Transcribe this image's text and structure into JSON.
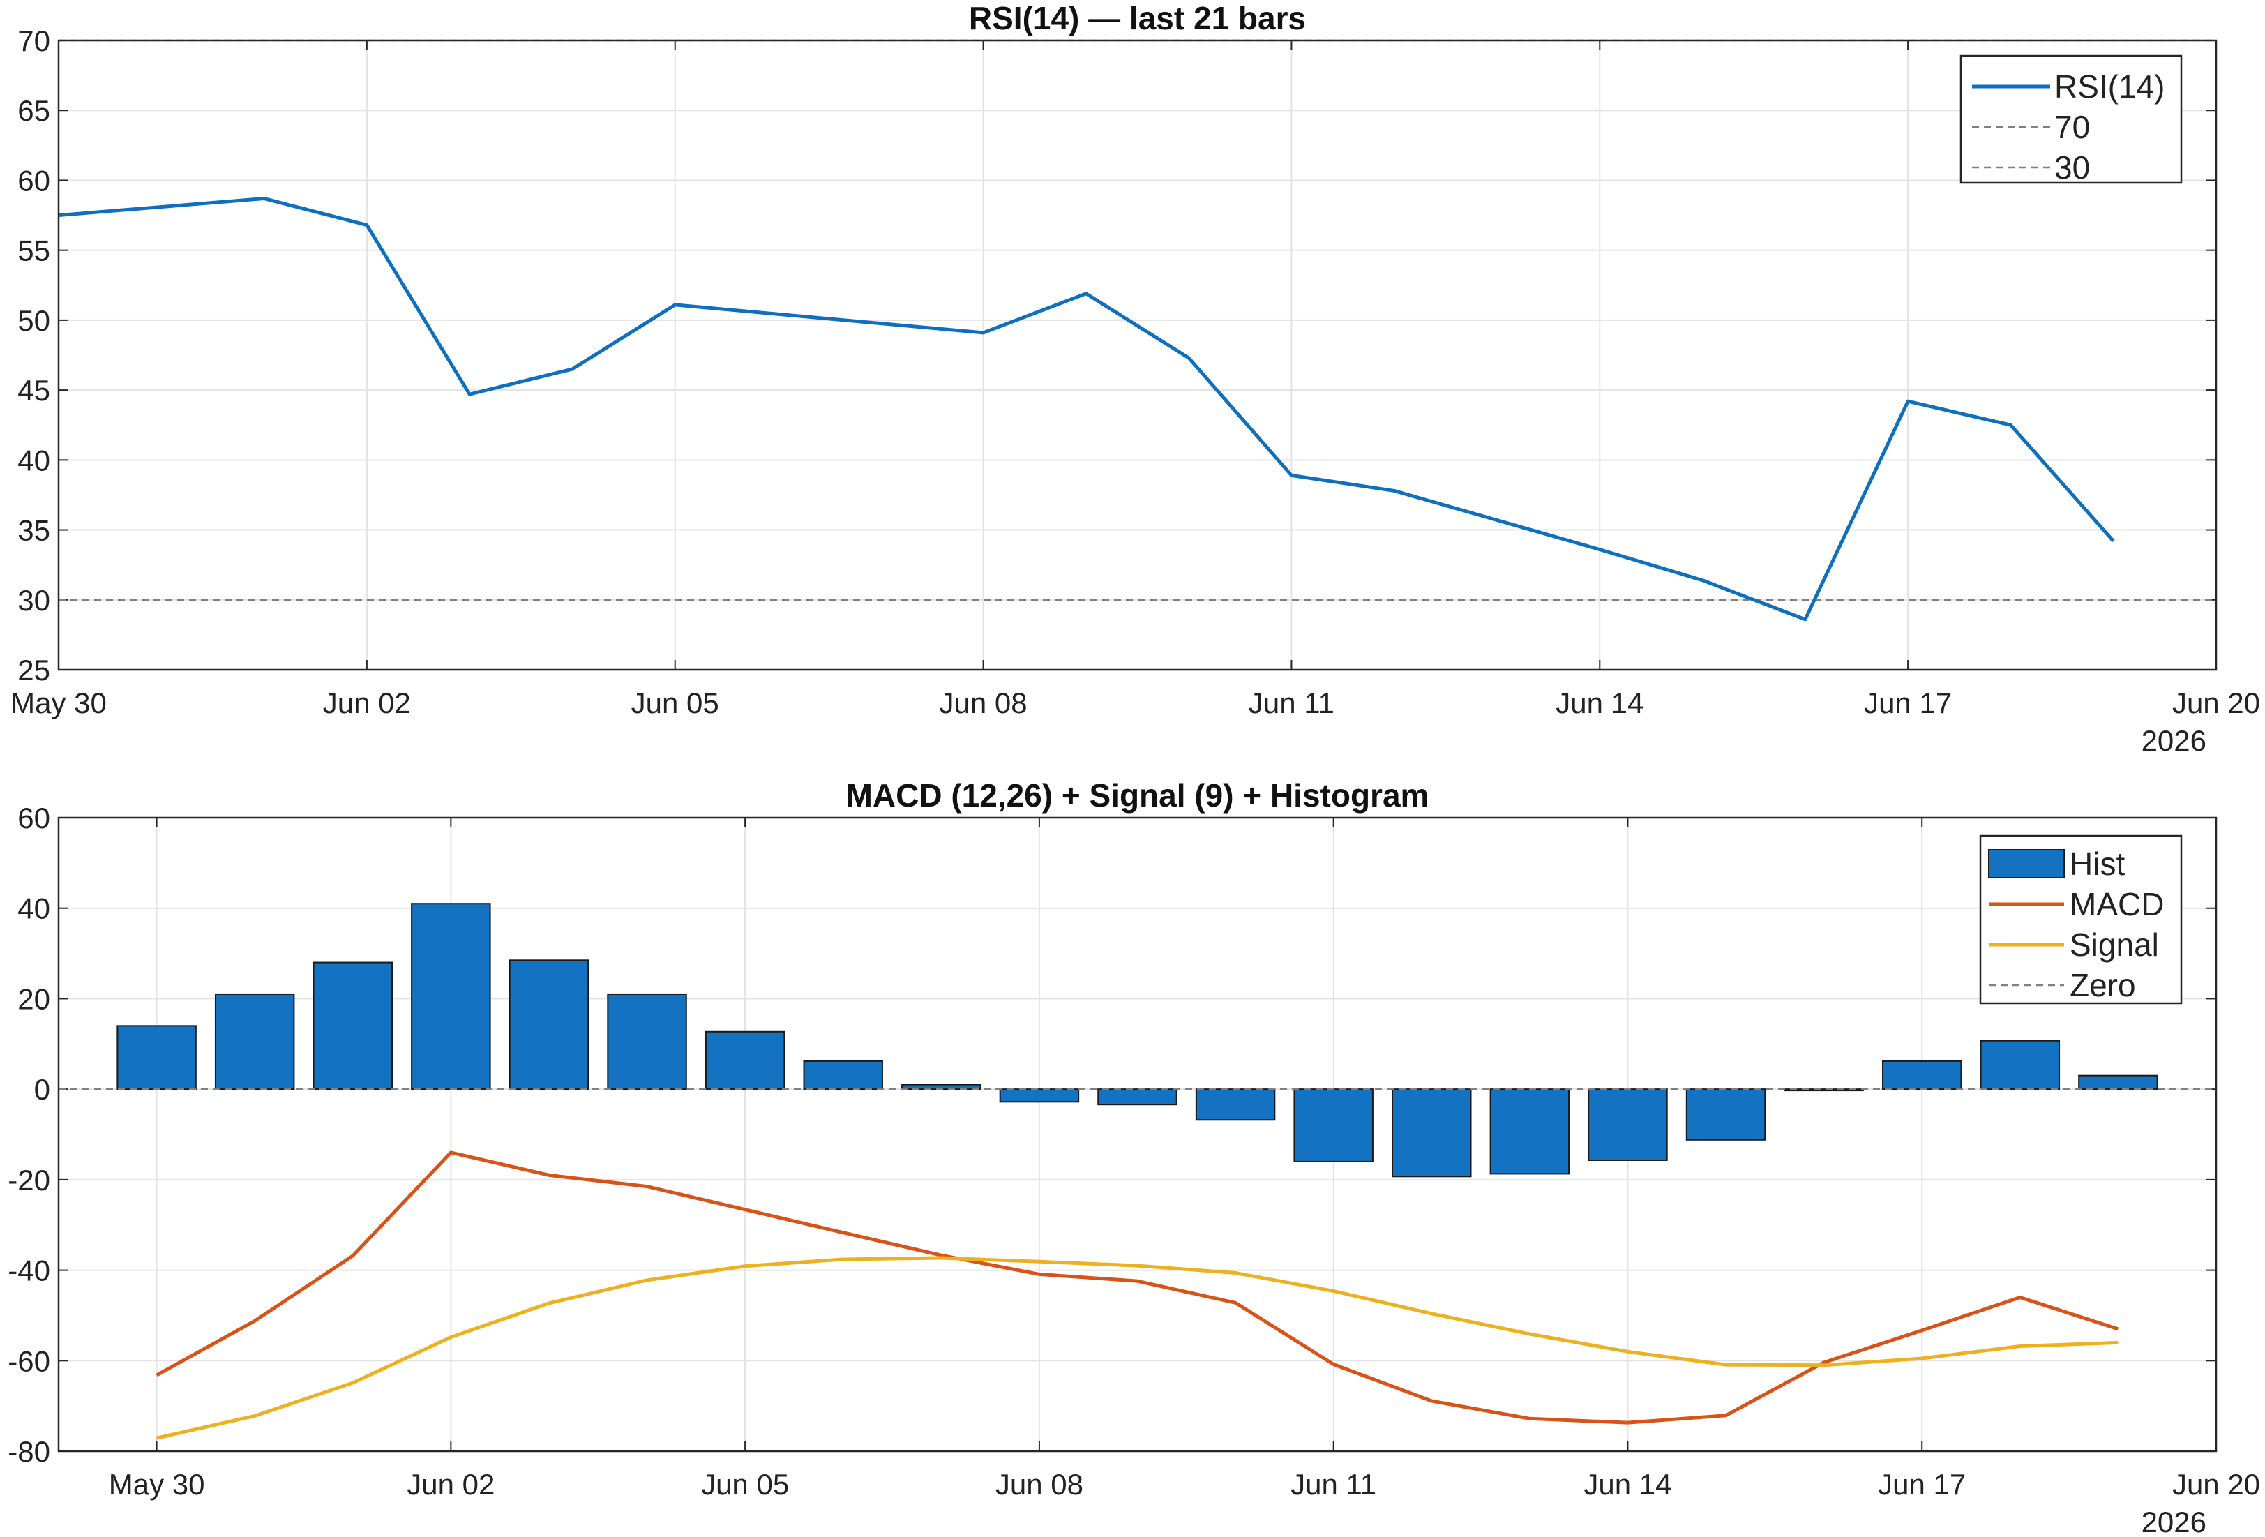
{
  "colors": {
    "rsi": "#0f6fbf",
    "hist": "#1372c1",
    "macd": "#d95319",
    "signal": "#edb120",
    "reference": "#808080",
    "grid": "#e3e3e3",
    "axis": "#262626"
  },
  "chart_data": [
    {
      "type": "line",
      "title": "RSI(14) — last 21 bars",
      "xlabel": "",
      "ylabel": "",
      "xlim": [
        "2026-05-30",
        "2026-06-20"
      ],
      "ylim": [
        25,
        70
      ],
      "yticks": [
        25,
        30,
        35,
        40,
        45,
        50,
        55,
        60,
        65,
        70
      ],
      "x_ticks": [
        {
          "date": "2026-05-30",
          "label": "May 30"
        },
        {
          "date": "2026-06-02",
          "label": "Jun 02"
        },
        {
          "date": "2026-06-05",
          "label": "Jun 05"
        },
        {
          "date": "2026-06-08",
          "label": "Jun 08"
        },
        {
          "date": "2026-06-11",
          "label": "Jun 11"
        },
        {
          "date": "2026-06-14",
          "label": "Jun 14"
        },
        {
          "date": "2026-06-17",
          "label": "Jun 17"
        },
        {
          "date": "2026-06-20",
          "label": "Jun 20"
        }
      ],
      "year_label": "2026",
      "grid": true,
      "legend": {
        "location": "top-right",
        "entries": [
          "RSI(14)",
          "70",
          "30"
        ]
      },
      "x": [
        "2026-05-30",
        "2026-06-01",
        "2026-06-02",
        "2026-06-03",
        "2026-06-04",
        "2026-06-05",
        "2026-06-08",
        "2026-06-09",
        "2026-06-10",
        "2026-06-11",
        "2026-06-12",
        "2026-06-13",
        "2026-06-14",
        "2026-06-15",
        "2026-06-16",
        "2026-06-17",
        "2026-06-18",
        "2026-06-19"
      ],
      "series": [
        {
          "name": "RSI(14)",
          "values": [
            57.5,
            58.7,
            56.8,
            44.7,
            46.5,
            51.1,
            49.1,
            51.9,
            47.3,
            38.9,
            37.8,
            35.7,
            33.6,
            31.4,
            28.6,
            44.2,
            42.5,
            34.2
          ]
        }
      ],
      "reference_lines": [
        {
          "name": "70",
          "value": 70
        },
        {
          "name": "30",
          "value": 30
        }
      ]
    },
    {
      "type": "bar",
      "title": "MACD (12,26) + Signal (9) + Histogram",
      "xlabel": "",
      "ylabel": "",
      "xlim": [
        "2026-05-29",
        "2026-06-20"
      ],
      "ylim": [
        -80,
        60
      ],
      "yticks": [
        -80,
        -60,
        -40,
        -20,
        0,
        20,
        40,
        60
      ],
      "x_ticks": [
        {
          "date": "2026-05-30",
          "label": "May 30"
        },
        {
          "date": "2026-06-02",
          "label": "Jun 02"
        },
        {
          "date": "2026-06-05",
          "label": "Jun 05"
        },
        {
          "date": "2026-06-08",
          "label": "Jun 08"
        },
        {
          "date": "2026-06-11",
          "label": "Jun 11"
        },
        {
          "date": "2026-06-14",
          "label": "Jun 14"
        },
        {
          "date": "2026-06-17",
          "label": "Jun 17"
        },
        {
          "date": "2026-06-20",
          "label": "Jun 20"
        }
      ],
      "year_label": "2026",
      "grid": true,
      "legend": {
        "location": "top-right",
        "entries": [
          "Hist",
          "MACD",
          "Signal",
          "Zero"
        ]
      },
      "x": [
        "2026-05-30",
        "2026-05-31",
        "2026-06-01",
        "2026-06-02",
        "2026-06-03",
        "2026-06-04",
        "2026-06-05",
        "2026-06-06",
        "2026-06-07",
        "2026-06-08",
        "2026-06-09",
        "2026-06-10",
        "2026-06-11",
        "2026-06-12",
        "2026-06-13",
        "2026-06-14",
        "2026-06-15",
        "2026-06-16",
        "2026-06-17",
        "2026-06-18",
        "2026-06-19"
      ],
      "series": [
        {
          "name": "Hist",
          "type": "bar",
          "values": [
            14,
            21,
            28,
            41,
            28.5,
            21,
            12.7,
            6.2,
            1,
            -2.8,
            -3.4,
            -6.8,
            -16,
            -19.3,
            -18.7,
            -15.7,
            -11.2,
            -0.3,
            6.2,
            10.7,
            3
          ]
        },
        {
          "name": "MACD",
          "type": "line",
          "values": [
            -63.2,
            -51.2,
            -36.8,
            -14,
            -19,
            -21.5,
            -26.6,
            -31.7,
            -36.7,
            -40.9,
            -42.4,
            -47.2,
            -60.8,
            -68.9,
            -72.8,
            -73.7,
            -72.1,
            -60.4,
            -53.3,
            -46,
            -53
          ]
        },
        {
          "name": "Signal",
          "type": "line",
          "values": [
            -77.1,
            -72.2,
            -64.9,
            -54.8,
            -47.3,
            -42.2,
            -39.1,
            -37.6,
            -37.3,
            -38.1,
            -39,
            -40.6,
            -44.6,
            -49.6,
            -54.1,
            -58,
            -60.9,
            -61,
            -59.5,
            -56.8,
            -56
          ]
        },
        {
          "name": "Zero",
          "type": "reference",
          "value": 0
        }
      ]
    }
  ]
}
